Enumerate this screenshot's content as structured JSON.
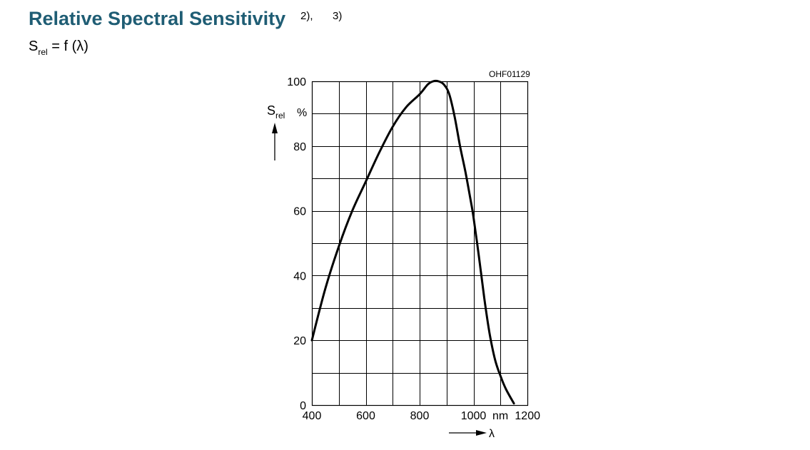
{
  "header": {
    "title": "Relative Spectral Sensitivity",
    "footnote_1": "2),",
    "footnote_2": "3)",
    "formula_main": "S",
    "formula_sub": "rel",
    "formula_rest": " = f (λ)"
  },
  "chart_data": {
    "type": "line",
    "code": "OHF01129",
    "y_axis_symbol": "S",
    "y_axis_subscript": "rel",
    "y_unit": "%",
    "x_axis_symbol": "λ",
    "x_unit": "nm",
    "xlim": [
      400,
      1200
    ],
    "ylim": [
      0,
      100
    ],
    "x_ticks": [
      400,
      600,
      800,
      1000,
      1200
    ],
    "y_ticks": [
      0,
      20,
      40,
      60,
      80,
      100
    ],
    "grid": true,
    "series": [
      {
        "x": [
          400,
          450,
          500,
          550,
          600,
          650,
          700,
          750,
          800,
          830,
          850,
          870,
          890,
          910,
          930,
          950,
          970,
          990,
          1000,
          1020,
          1040,
          1060,
          1080,
          1100,
          1120,
          1150
        ],
        "y": [
          20,
          36,
          49,
          60,
          69,
          78,
          86,
          92,
          96,
          99,
          100,
          100,
          99,
          96,
          89,
          80,
          72,
          63,
          58,
          46,
          33,
          22,
          14,
          9,
          5,
          0.5
        ]
      }
    ]
  }
}
